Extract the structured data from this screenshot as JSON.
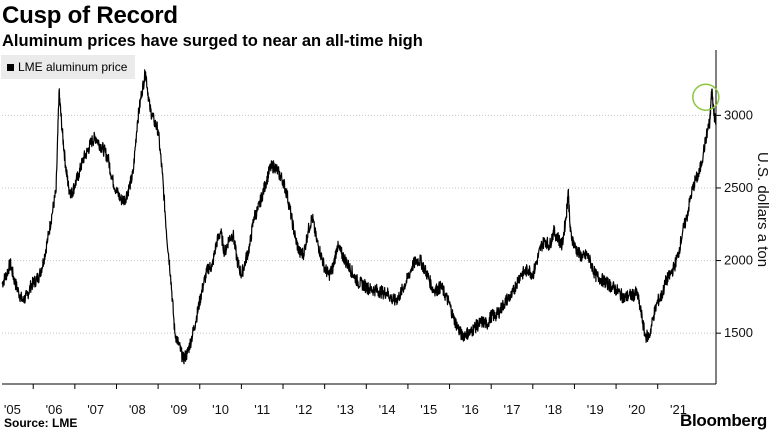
{
  "title": "Cusp of Record",
  "subtitle": "Aluminum prices have surged to near an all-time high",
  "source": "Source: LME",
  "brand": "Bloomberg",
  "chart_data": {
    "type": "line",
    "ylabel": "U.S. dollars a ton",
    "ylim": [
      1150,
      3450
    ],
    "xlim": [
      2004.75,
      2021.9
    ],
    "yticks": [
      1500,
      2000,
      2500,
      3000
    ],
    "xticks": [
      {
        "year": 2005,
        "label": "'05"
      },
      {
        "year": 2006,
        "label": "'06"
      },
      {
        "year": 2007,
        "label": "'07"
      },
      {
        "year": 2008,
        "label": "'08"
      },
      {
        "year": 2009,
        "label": "'09"
      },
      {
        "year": 2010,
        "label": "'10"
      },
      {
        "year": 2011,
        "label": "'11"
      },
      {
        "year": 2012,
        "label": "'12"
      },
      {
        "year": 2013,
        "label": "'13"
      },
      {
        "year": 2014,
        "label": "'14"
      },
      {
        "year": 2015,
        "label": "'15"
      },
      {
        "year": 2016,
        "label": "'16"
      },
      {
        "year": 2017,
        "label": "'17"
      },
      {
        "year": 2018,
        "label": "'18"
      },
      {
        "year": 2019,
        "label": "'19"
      },
      {
        "year": 2020,
        "label": "'20"
      },
      {
        "year": 2021,
        "label": "'21"
      }
    ],
    "grid": "horizontal-dotted",
    "legend_position": "top-left",
    "series": [
      {
        "name": "LME aluminum price",
        "color": "#000000",
        "x": [
          2004.75,
          2004.85,
          2004.95,
          2005.05,
          2005.15,
          2005.25,
          2005.35,
          2005.45,
          2005.55,
          2005.65,
          2005.75,
          2005.85,
          2005.95,
          2006.05,
          2006.12,
          2006.2,
          2006.28,
          2006.35,
          2006.42,
          2006.5,
          2006.6,
          2006.7,
          2006.8,
          2006.9,
          2007.0,
          2007.1,
          2007.2,
          2007.3,
          2007.4,
          2007.5,
          2007.6,
          2007.7,
          2007.8,
          2007.9,
          2008.0,
          2008.1,
          2008.2,
          2008.3,
          2008.4,
          2008.5,
          2008.6,
          2008.7,
          2008.8,
          2008.9,
          2009.0,
          2009.1,
          2009.2,
          2009.3,
          2009.4,
          2009.5,
          2009.6,
          2009.7,
          2009.8,
          2009.9,
          2010.0,
          2010.1,
          2010.2,
          2010.3,
          2010.4,
          2010.5,
          2010.6,
          2010.7,
          2010.8,
          2010.9,
          2011.0,
          2011.1,
          2011.2,
          2011.3,
          2011.4,
          2011.5,
          2011.6,
          2011.7,
          2011.8,
          2011.9,
          2012.0,
          2012.1,
          2012.2,
          2012.3,
          2012.4,
          2012.5,
          2012.6,
          2012.7,
          2012.8,
          2012.9,
          2013.0,
          2013.1,
          2013.2,
          2013.3,
          2013.4,
          2013.5,
          2013.6,
          2013.7,
          2013.8,
          2013.9,
          2014.0,
          2014.1,
          2014.2,
          2014.3,
          2014.4,
          2014.5,
          2014.6,
          2014.7,
          2014.8,
          2014.9,
          2015.0,
          2015.1,
          2015.2,
          2015.3,
          2015.4,
          2015.5,
          2015.6,
          2015.7,
          2015.8,
          2015.9,
          2016.0,
          2016.1,
          2016.2,
          2016.3,
          2016.4,
          2016.5,
          2016.6,
          2016.7,
          2016.8,
          2016.9,
          2017.0,
          2017.1,
          2017.2,
          2017.3,
          2017.4,
          2017.5,
          2017.6,
          2017.7,
          2017.8,
          2017.9,
          2018.0,
          2018.1,
          2018.2,
          2018.3,
          2018.35,
          2018.4,
          2018.5,
          2018.6,
          2018.7,
          2018.8,
          2018.9,
          2019.0,
          2019.1,
          2019.2,
          2019.3,
          2019.4,
          2019.5,
          2019.6,
          2019.7,
          2019.8,
          2019.9,
          2020.0,
          2020.1,
          2020.2,
          2020.3,
          2020.4,
          2020.5,
          2020.6,
          2020.7,
          2020.8,
          2020.9,
          2021.0,
          2021.1,
          2021.2,
          2021.3,
          2021.4,
          2021.5,
          2021.6,
          2021.7,
          2021.75,
          2021.8,
          2021.85,
          2021.9
        ],
        "y": [
          1840,
          1900,
          1980,
          1860,
          1780,
          1720,
          1760,
          1830,
          1860,
          1900,
          2000,
          2150,
          2320,
          2480,
          3160,
          2880,
          2650,
          2500,
          2460,
          2520,
          2600,
          2700,
          2750,
          2820,
          2850,
          2800,
          2760,
          2700,
          2560,
          2480,
          2420,
          2420,
          2500,
          2600,
          2950,
          3150,
          3300,
          3050,
          2960,
          2900,
          2600,
          2200,
          1900,
          1500,
          1420,
          1320,
          1360,
          1460,
          1580,
          1720,
          1850,
          1950,
          1960,
          2120,
          2200,
          2050,
          2150,
          2180,
          2000,
          1900,
          2000,
          2100,
          2300,
          2350,
          2450,
          2550,
          2640,
          2650,
          2600,
          2550,
          2450,
          2300,
          2150,
          2050,
          2050,
          2200,
          2300,
          2150,
          2050,
          1950,
          1900,
          1950,
          2100,
          2050,
          2000,
          1950,
          1900,
          1850,
          1840,
          1820,
          1800,
          1800,
          1790,
          1780,
          1780,
          1740,
          1720,
          1760,
          1820,
          1880,
          1960,
          2000,
          2000,
          1940,
          1880,
          1800,
          1800,
          1820,
          1760,
          1700,
          1600,
          1540,
          1480,
          1500,
          1500,
          1540,
          1560,
          1580,
          1560,
          1620,
          1620,
          1650,
          1700,
          1740,
          1760,
          1840,
          1900,
          1920,
          1940,
          1900,
          2000,
          2100,
          2140,
          2100,
          2200,
          2160,
          2100,
          2300,
          2480,
          2200,
          2100,
          2050,
          2020,
          2040,
          1980,
          1900,
          1880,
          1860,
          1840,
          1820,
          1800,
          1770,
          1740,
          1760,
          1760,
          1780,
          1640,
          1480,
          1480,
          1620,
          1720,
          1760,
          1860,
          1900,
          1960,
          2050,
          2200,
          2300,
          2450,
          2550,
          2600,
          2750,
          2900,
          2950,
          3180,
          3020,
          2940
        ]
      }
    ],
    "annotation": "green circle marking the recent peak near the all-time high",
    "annotation_color": "#8cc63f"
  }
}
